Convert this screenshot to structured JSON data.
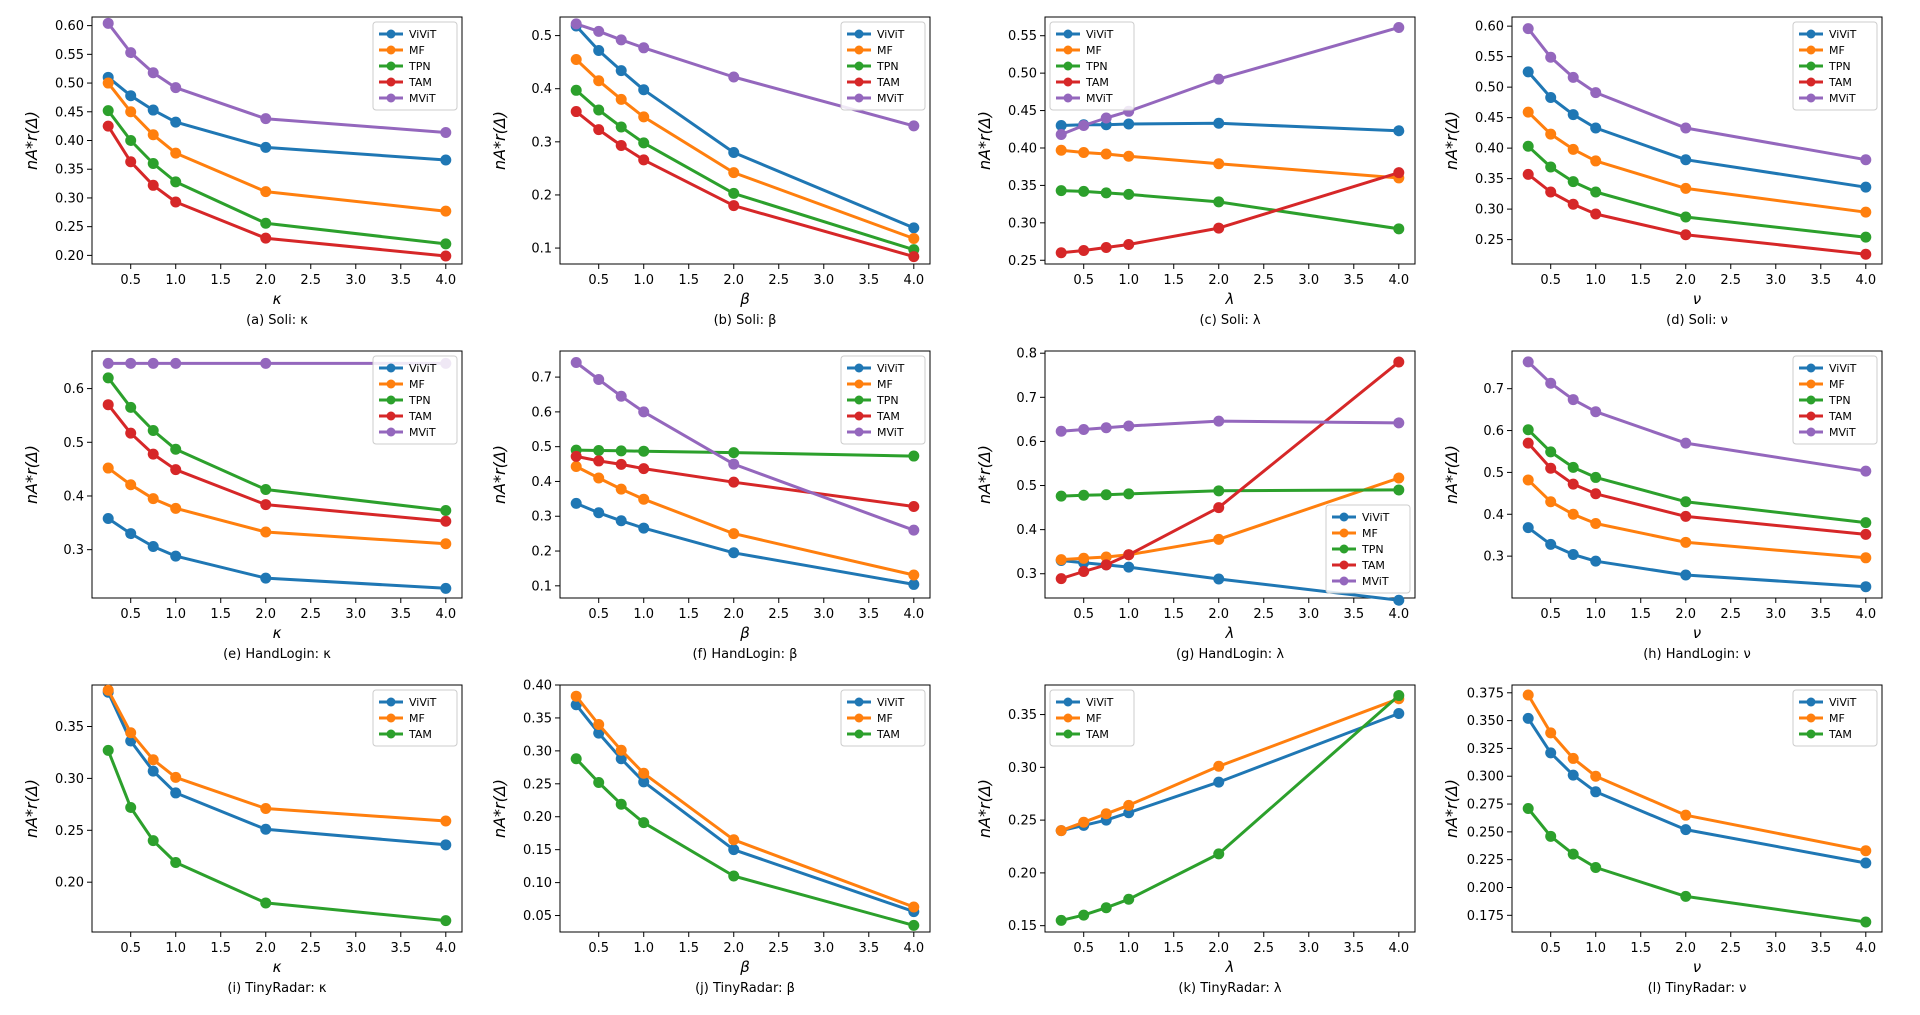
{
  "colors": {
    "ViViT": "#1f77b4",
    "MF": "#ff7f0e",
    "TPN": "#2ca02c",
    "TAM": "#d62728",
    "MViT": "#9467bd",
    "TAM3": "#2ca02c"
  },
  "chart_data": [
    {
      "type": "line",
      "caption": "(a) Soli: κ",
      "xlabel": "κ",
      "ylabel": "nA*r(Δ)",
      "x": [
        0.25,
        0.5,
        0.75,
        1.0,
        2.0,
        4.0
      ],
      "xlim": [
        0.07,
        4.18
      ],
      "ylim": [
        0.185,
        0.615
      ],
      "xticks": [
        "0.5",
        "1.0",
        "1.5",
        "2.0",
        "2.5",
        "3.0",
        "3.5",
        "4.0"
      ],
      "yticks": [
        "0.20",
        "0.25",
        "0.30",
        "0.35",
        "0.40",
        "0.45",
        "0.50",
        "0.55",
        "0.60"
      ],
      "legend": "top-right",
      "series": [
        {
          "name": "ViViT",
          "values": [
            0.51,
            0.478,
            0.453,
            0.432,
            0.388,
            0.366
          ]
        },
        {
          "name": "MF",
          "values": [
            0.5,
            0.45,
            0.41,
            0.378,
            0.311,
            0.277
          ]
        },
        {
          "name": "TPN",
          "values": [
            0.452,
            0.4,
            0.36,
            0.328,
            0.256,
            0.22
          ]
        },
        {
          "name": "TAM",
          "values": [
            0.425,
            0.363,
            0.322,
            0.293,
            0.23,
            0.199
          ]
        },
        {
          "name": "MViT",
          "values": [
            0.604,
            0.553,
            0.518,
            0.492,
            0.438,
            0.414
          ]
        }
      ]
    },
    {
      "type": "line",
      "caption": "(b) Soli: β",
      "xlabel": "β",
      "ylabel": "nA*r(Δ)",
      "x": [
        0.25,
        0.5,
        0.75,
        1.0,
        2.0,
        4.0
      ],
      "xlim": [
        0.07,
        4.18
      ],
      "ylim": [
        0.07,
        0.535
      ],
      "xticks": [
        "0.5",
        "1.0",
        "1.5",
        "2.0",
        "2.5",
        "3.0",
        "3.5",
        "4.0"
      ],
      "yticks": [
        "0.1",
        "0.2",
        "0.3",
        "0.4",
        "0.5"
      ],
      "legend": "top-right",
      "series": [
        {
          "name": "ViViT",
          "values": [
            0.518,
            0.472,
            0.434,
            0.398,
            0.28,
            0.138
          ]
        },
        {
          "name": "MF",
          "values": [
            0.455,
            0.415,
            0.38,
            0.347,
            0.242,
            0.118
          ]
        },
        {
          "name": "TPN",
          "values": [
            0.397,
            0.36,
            0.328,
            0.298,
            0.203,
            0.097
          ]
        },
        {
          "name": "TAM",
          "values": [
            0.357,
            0.323,
            0.293,
            0.266,
            0.18,
            0.084
          ]
        },
        {
          "name": "MViT",
          "values": [
            0.522,
            0.508,
            0.492,
            0.477,
            0.422,
            0.33
          ]
        }
      ]
    },
    {
      "type": "line",
      "caption": "(c) Soli: λ",
      "xlabel": "λ",
      "ylabel": "nA*r(Δ)",
      "x": [
        0.25,
        0.5,
        0.75,
        1.0,
        2.0,
        4.0
      ],
      "xlim": [
        0.07,
        4.18
      ],
      "ylim": [
        0.245,
        0.575
      ],
      "xticks": [
        "0.5",
        "1.0",
        "1.5",
        "2.0",
        "2.5",
        "3.0",
        "3.5",
        "4.0"
      ],
      "yticks": [
        "0.25",
        "0.30",
        "0.35",
        "0.40",
        "0.45",
        "0.50",
        "0.55"
      ],
      "legend": "top-left",
      "series": [
        {
          "name": "ViViT",
          "values": [
            0.43,
            0.431,
            0.431,
            0.432,
            0.433,
            0.423
          ]
        },
        {
          "name": "MF",
          "values": [
            0.397,
            0.394,
            0.392,
            0.389,
            0.379,
            0.36
          ]
        },
        {
          "name": "TPN",
          "values": [
            0.343,
            0.342,
            0.34,
            0.338,
            0.328,
            0.292
          ]
        },
        {
          "name": "TAM",
          "values": [
            0.26,
            0.263,
            0.267,
            0.271,
            0.293,
            0.367
          ]
        },
        {
          "name": "MViT",
          "values": [
            0.418,
            0.43,
            0.44,
            0.449,
            0.492,
            0.561
          ]
        }
      ]
    },
    {
      "type": "line",
      "caption": "(d) Soli: ν",
      "xlabel": "ν",
      "ylabel": "nA*r(Δ)",
      "x": [
        0.25,
        0.5,
        0.75,
        1.0,
        2.0,
        4.0
      ],
      "xlim": [
        0.07,
        4.18
      ],
      "ylim": [
        0.21,
        0.615
      ],
      "xticks": [
        "0.5",
        "1.0",
        "1.5",
        "2.0",
        "2.5",
        "3.0",
        "3.5",
        "4.0"
      ],
      "yticks": [
        "0.25",
        "0.30",
        "0.35",
        "0.40",
        "0.45",
        "0.50",
        "0.55",
        "0.60"
      ],
      "legend": "top-right",
      "series": [
        {
          "name": "ViViT",
          "values": [
            0.525,
            0.483,
            0.455,
            0.433,
            0.381,
            0.336
          ]
        },
        {
          "name": "MF",
          "values": [
            0.459,
            0.423,
            0.398,
            0.379,
            0.334,
            0.295
          ]
        },
        {
          "name": "TPN",
          "values": [
            0.403,
            0.369,
            0.345,
            0.328,
            0.287,
            0.254
          ]
        },
        {
          "name": "TAM",
          "values": [
            0.357,
            0.328,
            0.308,
            0.292,
            0.258,
            0.226
          ]
        },
        {
          "name": "MViT",
          "values": [
            0.596,
            0.549,
            0.516,
            0.491,
            0.433,
            0.381
          ]
        }
      ]
    },
    {
      "type": "line",
      "caption": "(e) HandLogin: κ",
      "xlabel": "κ",
      "ylabel": "nA*r(Δ)",
      "x": [
        0.25,
        0.5,
        0.75,
        1.0,
        2.0,
        4.0
      ],
      "xlim": [
        0.07,
        4.18
      ],
      "ylim": [
        0.21,
        0.67
      ],
      "xticks": [
        "0.5",
        "1.0",
        "1.5",
        "2.0",
        "2.5",
        "3.0",
        "3.5",
        "4.0"
      ],
      "yticks": [
        "0.3",
        "0.4",
        "0.5",
        "0.6"
      ],
      "legend": "top-right",
      "series": [
        {
          "name": "ViViT",
          "values": [
            0.358,
            0.33,
            0.306,
            0.288,
            0.247,
            0.228
          ]
        },
        {
          "name": "MF",
          "values": [
            0.452,
            0.421,
            0.395,
            0.377,
            0.333,
            0.311
          ]
        },
        {
          "name": "TPN",
          "values": [
            0.62,
            0.565,
            0.522,
            0.487,
            0.412,
            0.373
          ]
        },
        {
          "name": "TAM",
          "values": [
            0.57,
            0.517,
            0.478,
            0.449,
            0.384,
            0.353
          ]
        },
        {
          "name": "MViT",
          "values": [
            0.647,
            0.647,
            0.647,
            0.647,
            0.647,
            0.647
          ]
        }
      ]
    },
    {
      "type": "line",
      "caption": "(f) HandLogin: β",
      "xlabel": "β",
      "ylabel": "nA*r(Δ)",
      "x": [
        0.25,
        0.5,
        0.75,
        1.0,
        2.0,
        4.0
      ],
      "xlim": [
        0.07,
        4.18
      ],
      "ylim": [
        0.065,
        0.775
      ],
      "xticks": [
        "0.5",
        "1.0",
        "1.5",
        "2.0",
        "2.5",
        "3.0",
        "3.5",
        "4.0"
      ],
      "yticks": [
        "0.1",
        "0.2",
        "0.3",
        "0.4",
        "0.5",
        "0.6",
        "0.7"
      ],
      "legend": "top-right",
      "series": [
        {
          "name": "ViViT",
          "values": [
            0.337,
            0.31,
            0.287,
            0.266,
            0.195,
            0.104
          ]
        },
        {
          "name": "MF",
          "values": [
            0.443,
            0.41,
            0.378,
            0.349,
            0.25,
            0.131
          ]
        },
        {
          "name": "TPN",
          "values": [
            0.49,
            0.489,
            0.488,
            0.487,
            0.483,
            0.473
          ]
        },
        {
          "name": "TAM",
          "values": [
            0.472,
            0.459,
            0.449,
            0.437,
            0.398,
            0.328
          ]
        },
        {
          "name": "MViT",
          "values": [
            0.742,
            0.693,
            0.645,
            0.6,
            0.45,
            0.26
          ]
        }
      ]
    },
    {
      "type": "line",
      "caption": "(g) HandLogin: λ",
      "xlabel": "λ",
      "ylabel": "nA*r(Δ)",
      "x": [
        0.25,
        0.5,
        0.75,
        1.0,
        2.0,
        4.0
      ],
      "xlim": [
        0.07,
        4.18
      ],
      "ylim": [
        0.245,
        0.805
      ],
      "xticks": [
        "0.5",
        "1.0",
        "1.5",
        "2.0",
        "2.5",
        "3.0",
        "3.5",
        "4.0"
      ],
      "yticks": [
        "0.3",
        "0.4",
        "0.5",
        "0.6",
        "0.7",
        "0.8"
      ],
      "legend": "bottom-right",
      "series": [
        {
          "name": "ViViT",
          "values": [
            0.33,
            0.325,
            0.32,
            0.315,
            0.288,
            0.24
          ]
        },
        {
          "name": "MF",
          "values": [
            0.332,
            0.335,
            0.338,
            0.343,
            0.378,
            0.517
          ]
        },
        {
          "name": "TPN",
          "values": [
            0.476,
            0.478,
            0.479,
            0.481,
            0.488,
            0.49
          ]
        },
        {
          "name": "TAM",
          "values": [
            0.289,
            0.305,
            0.32,
            0.343,
            0.45,
            0.78
          ]
        },
        {
          "name": "MViT",
          "values": [
            0.623,
            0.627,
            0.631,
            0.635,
            0.646,
            0.642
          ]
        }
      ]
    },
    {
      "type": "line",
      "caption": "(h) HandLogin: ν",
      "xlabel": "ν",
      "ylabel": "nA*r(Δ)",
      "x": [
        0.25,
        0.5,
        0.75,
        1.0,
        2.0,
        4.0
      ],
      "xlim": [
        0.07,
        4.18
      ],
      "ylim": [
        0.2,
        0.79
      ],
      "xticks": [
        "0.5",
        "1.0",
        "1.5",
        "2.0",
        "2.5",
        "3.0",
        "3.5",
        "4.0"
      ],
      "yticks": [
        "0.3",
        "0.4",
        "0.5",
        "0.6",
        "0.7"
      ],
      "legend": "top-right",
      "series": [
        {
          "name": "ViViT",
          "values": [
            0.368,
            0.328,
            0.304,
            0.288,
            0.255,
            0.227
          ]
        },
        {
          "name": "MF",
          "values": [
            0.482,
            0.43,
            0.4,
            0.378,
            0.333,
            0.296
          ]
        },
        {
          "name": "TPN",
          "values": [
            0.602,
            0.549,
            0.512,
            0.488,
            0.43,
            0.38
          ]
        },
        {
          "name": "TAM",
          "values": [
            0.57,
            0.51,
            0.472,
            0.449,
            0.395,
            0.352
          ]
        },
        {
          "name": "MViT",
          "values": [
            0.764,
            0.713,
            0.674,
            0.645,
            0.57,
            0.503
          ]
        }
      ]
    },
    {
      "type": "line",
      "caption": "(i) TinyRadar: κ",
      "xlabel": "κ",
      "ylabel": "nA*r(Δ)",
      "x": [
        0.25,
        0.5,
        0.75,
        1.0,
        2.0,
        4.0
      ],
      "xlim": [
        0.07,
        4.18
      ],
      "ylim": [
        0.152,
        0.39
      ],
      "xticks": [
        "0.5",
        "1.0",
        "1.5",
        "2.0",
        "2.5",
        "3.0",
        "3.5",
        "4.0"
      ],
      "yticks": [
        "0.20",
        "0.25",
        "0.30",
        "0.35"
      ],
      "legend": "top-right",
      "series": [
        {
          "name": "ViViT",
          "values": [
            0.383,
            0.336,
            0.307,
            0.286,
            0.251,
            0.236
          ]
        },
        {
          "name": "MF",
          "values": [
            0.385,
            0.344,
            0.318,
            0.301,
            0.271,
            0.259
          ]
        },
        {
          "name": "TAM",
          "color_key": "TAM3",
          "values": [
            0.327,
            0.272,
            0.24,
            0.219,
            0.18,
            0.163
          ]
        }
      ]
    },
    {
      "type": "line",
      "caption": "(j) TinyRadar: β",
      "xlabel": "β",
      "ylabel": "nA*r(Δ)",
      "x": [
        0.25,
        0.5,
        0.75,
        1.0,
        2.0,
        4.0
      ],
      "xlim": [
        0.07,
        4.18
      ],
      "ylim": [
        0.025,
        0.4
      ],
      "xticks": [
        "0.5",
        "1.0",
        "1.5",
        "2.0",
        "2.5",
        "3.0",
        "3.5",
        "4.0"
      ],
      "yticks": [
        "0.05",
        "0.10",
        "0.15",
        "0.20",
        "0.25",
        "0.30",
        "0.35",
        "0.40"
      ],
      "legend": "top-right",
      "series": [
        {
          "name": "ViViT",
          "values": [
            0.37,
            0.327,
            0.288,
            0.253,
            0.15,
            0.056
          ]
        },
        {
          "name": "MF",
          "values": [
            0.383,
            0.34,
            0.301,
            0.266,
            0.165,
            0.063
          ]
        },
        {
          "name": "TAM",
          "color_key": "TAM3",
          "values": [
            0.288,
            0.252,
            0.219,
            0.191,
            0.11,
            0.035
          ]
        }
      ]
    },
    {
      "type": "line",
      "caption": "(k) TinyRadar: λ",
      "xlabel": "λ",
      "ylabel": "nA*r(Δ)",
      "x": [
        0.25,
        0.5,
        0.75,
        1.0,
        2.0,
        4.0
      ],
      "xlim": [
        0.07,
        4.18
      ],
      "ylim": [
        0.144,
        0.378
      ],
      "xticks": [
        "0.5",
        "1.0",
        "1.5",
        "2.0",
        "2.5",
        "3.0",
        "3.5",
        "4.0"
      ],
      "yticks": [
        "0.15",
        "0.20",
        "0.25",
        "0.30",
        "0.35"
      ],
      "legend": "top-left",
      "series": [
        {
          "name": "ViViT",
          "values": [
            0.24,
            0.245,
            0.25,
            0.257,
            0.286,
            0.351
          ]
        },
        {
          "name": "MF",
          "values": [
            0.24,
            0.248,
            0.256,
            0.264,
            0.301,
            0.365
          ]
        },
        {
          "name": "TAM",
          "color_key": "TAM3",
          "values": [
            0.155,
            0.16,
            0.167,
            0.175,
            0.218,
            0.368
          ]
        }
      ]
    },
    {
      "type": "line",
      "caption": "(l) TinyRadar: ν",
      "xlabel": "ν",
      "ylabel": "nA*r(Δ)",
      "x": [
        0.25,
        0.5,
        0.75,
        1.0,
        2.0,
        4.0
      ],
      "xlim": [
        0.07,
        4.18
      ],
      "ylim": [
        0.16,
        0.382
      ],
      "xticks": [
        "0.5",
        "1.0",
        "1.5",
        "2.0",
        "2.5",
        "3.0",
        "3.5",
        "4.0"
      ],
      "yticks": [
        "0.175",
        "0.200",
        "0.225",
        "0.250",
        "0.275",
        "0.300",
        "0.325",
        "0.350",
        "0.375"
      ],
      "legend": "top-right",
      "series": [
        {
          "name": "ViViT",
          "values": [
            0.352,
            0.321,
            0.301,
            0.286,
            0.252,
            0.222
          ]
        },
        {
          "name": "MF",
          "values": [
            0.373,
            0.339,
            0.316,
            0.3,
            0.265,
            0.233
          ]
        },
        {
          "name": "TAM",
          "color_key": "TAM3",
          "values": [
            0.271,
            0.246,
            0.23,
            0.218,
            0.192,
            0.169
          ]
        }
      ]
    }
  ]
}
